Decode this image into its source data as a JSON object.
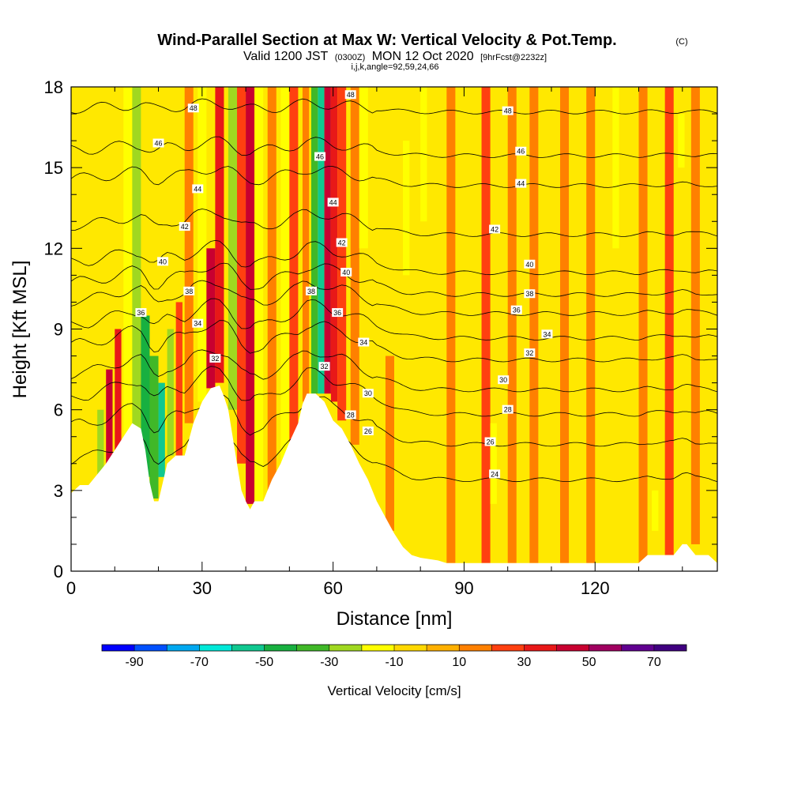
{
  "chart_data": {
    "type": "heatmap",
    "title": "Wind-Parallel Section at Max W: Vertical Velocity & Pot.Temp.",
    "title_mark": "(C)",
    "subtitle_parts": [
      "Valid 1200 JST",
      "(0300Z)",
      "MON 12 Oct 2020",
      "[9hrFcst@2232z]"
    ],
    "subtitle2": "i,j,k,angle=92,59,24,66",
    "xlabel": "Distance [nm]",
    "ylabel": "Height [Kft MSL]",
    "xlim": [
      0,
      148
    ],
    "ylim": [
      0,
      18
    ],
    "x_ticks": [
      0,
      30,
      60,
      90,
      120
    ],
    "x_tick_labels": [
      "0",
      "30",
      "60",
      "90",
      "120"
    ],
    "y_ticks": [
      0,
      3,
      6,
      9,
      12,
      15,
      18
    ],
    "y_tick_labels": [
      "0",
      "3",
      "6",
      "9",
      "12",
      "15",
      "18"
    ],
    "colorbar": {
      "title": "Vertical Velocity [cm/s]",
      "bounds": [
        -100,
        80
      ],
      "step": 10,
      "tick_values": [
        -90,
        -70,
        -50,
        -30,
        -10,
        10,
        30,
        50,
        70
      ],
      "tick_labels": [
        "-90",
        "-70",
        "-50",
        "-30",
        "-10",
        "10",
        "30",
        "50",
        "70"
      ],
      "colors": [
        "#0000ff",
        "#0050ff",
        "#00a8f0",
        "#00e8d8",
        "#10c890",
        "#18b040",
        "#40b828",
        "#a0d820",
        "#ffff00",
        "#ffd800",
        "#ffb000",
        "#ff8000",
        "#ff4010",
        "#e81818",
        "#c80030",
        "#a00060",
        "#600090",
        "#400080"
      ]
    },
    "grid": false,
    "terrain_height": [
      [
        0,
        2.9
      ],
      [
        2,
        3.2
      ],
      [
        4,
        3.2
      ],
      [
        6,
        3.6
      ],
      [
        8,
        4.0
      ],
      [
        10,
        4.5
      ],
      [
        12,
        5.0
      ],
      [
        14,
        5.5
      ],
      [
        16,
        5.3
      ],
      [
        17,
        4.5
      ],
      [
        18,
        3.3
      ],
      [
        19,
        2.6
      ],
      [
        20,
        2.6
      ],
      [
        21,
        3.3
      ],
      [
        22,
        4.0
      ],
      [
        24,
        4.3
      ],
      [
        26,
        4.3
      ],
      [
        28,
        5.5
      ],
      [
        30,
        6.3
      ],
      [
        32,
        6.8
      ],
      [
        34,
        6.9
      ],
      [
        35,
        6.5
      ],
      [
        36,
        6.0
      ],
      [
        37,
        5.0
      ],
      [
        38,
        4.0
      ],
      [
        39,
        3.0
      ],
      [
        40,
        2.6
      ],
      [
        41,
        2.3
      ],
      [
        42,
        2.6
      ],
      [
        44,
        2.6
      ],
      [
        45,
        3.0
      ],
      [
        46,
        3.4
      ],
      [
        48,
        4.0
      ],
      [
        50,
        4.8
      ],
      [
        52,
        5.5
      ],
      [
        53,
        6.2
      ],
      [
        54,
        6.6
      ],
      [
        56,
        6.6
      ],
      [
        58,
        6.3
      ],
      [
        60,
        5.6
      ],
      [
        62,
        5.3
      ],
      [
        64,
        4.7
      ],
      [
        66,
        4.0
      ],
      [
        68,
        3.4
      ],
      [
        70,
        2.6
      ],
      [
        72,
        2.0
      ],
      [
        74,
        1.4
      ],
      [
        76,
        0.9
      ],
      [
        78,
        0.6
      ],
      [
        80,
        0.5
      ],
      [
        84,
        0.4
      ],
      [
        86,
        0.3
      ],
      [
        90,
        0.3
      ],
      [
        100,
        0.3
      ],
      [
        110,
        0.3
      ],
      [
        120,
        0.3
      ],
      [
        130,
        0.3
      ],
      [
        132,
        0.6
      ],
      [
        133,
        0.6
      ],
      [
        136,
        0.6
      ],
      [
        138,
        0.6
      ],
      [
        140,
        1.0
      ],
      [
        141,
        1.0
      ],
      [
        143,
        0.6
      ],
      [
        146,
        0.6
      ],
      [
        148,
        0.3
      ]
    ],
    "w_cells": [
      {
        "x": 6,
        "w": 1.5,
        "y0": 3.5,
        "y1": 6.0,
        "v": -25
      },
      {
        "x": 8,
        "w": 1.5,
        "y0": 4.0,
        "y1": 7.5,
        "v": 45
      },
      {
        "x": 10,
        "w": 1.5,
        "y0": 4.5,
        "y1": 9.0,
        "v": 35
      },
      {
        "x": 12,
        "w": 2.0,
        "y0": 5.0,
        "y1": 18.0,
        "v": -15
      },
      {
        "x": 14,
        "w": 2.0,
        "y0": 5.0,
        "y1": 18.0,
        "v": -25
      },
      {
        "x": 16,
        "w": 2.0,
        "y0": 3.5,
        "y1": 9.5,
        "v": -45
      },
      {
        "x": 18,
        "w": 2.0,
        "y0": 2.7,
        "y1": 8.0,
        "v": -35
      },
      {
        "x": 20,
        "w": 1.5,
        "y0": 3.5,
        "y1": 7.0,
        "v": -55
      },
      {
        "x": 22,
        "w": 1.5,
        "y0": 4.3,
        "y1": 9.0,
        "v": -30
      },
      {
        "x": 24,
        "w": 1.5,
        "y0": 4.3,
        "y1": 10.0,
        "v": 25
      },
      {
        "x": 26,
        "w": 2.0,
        "y0": 5.5,
        "y1": 18.0,
        "v": 15
      },
      {
        "x": 29,
        "w": 2.0,
        "y0": 6.3,
        "y1": 18.0,
        "v": -15
      },
      {
        "x": 31,
        "w": 2.0,
        "y0": 6.8,
        "y1": 12.0,
        "v": 45
      },
      {
        "x": 33,
        "w": 2.0,
        "y0": 7.0,
        "y1": 18.0,
        "v": 35
      },
      {
        "x": 36,
        "w": 2.0,
        "y0": 6.0,
        "y1": 18.0,
        "v": -25
      },
      {
        "x": 38,
        "w": 2.0,
        "y0": 4.0,
        "y1": 18.0,
        "v": 25
      },
      {
        "x": 40,
        "w": 2.0,
        "y0": 2.5,
        "y1": 18.0,
        "v": 45
      },
      {
        "x": 42,
        "w": 2.0,
        "y0": 2.6,
        "y1": 18.0,
        "v": -15
      },
      {
        "x": 45,
        "w": 2.0,
        "y0": 3.0,
        "y1": 18.0,
        "v": 15
      },
      {
        "x": 48,
        "w": 2.0,
        "y0": 4.0,
        "y1": 18.0,
        "v": -15
      },
      {
        "x": 50,
        "w": 2.0,
        "y0": 4.8,
        "y1": 18.0,
        "v": 25
      },
      {
        "x": 53,
        "w": 1.5,
        "y0": 6.3,
        "y1": 18.0,
        "v": 15
      },
      {
        "x": 55,
        "w": 1.5,
        "y0": 6.6,
        "y1": 18.0,
        "v": -35
      },
      {
        "x": 56.5,
        "w": 1.5,
        "y0": 6.6,
        "y1": 18.0,
        "v": -55
      },
      {
        "x": 58,
        "w": 1.5,
        "y0": 6.6,
        "y1": 18.0,
        "v": 45
      },
      {
        "x": 59.5,
        "w": 1.5,
        "y0": 6.3,
        "y1": 18.0,
        "v": 35
      },
      {
        "x": 61,
        "w": 2.0,
        "y0": 5.6,
        "y1": 18.0,
        "v": 25
      },
      {
        "x": 64,
        "w": 2.0,
        "y0": 4.7,
        "y1": 18.0,
        "v": 15
      },
      {
        "x": 66,
        "w": 2.0,
        "y0": 12.0,
        "y1": 18.0,
        "v": -15
      },
      {
        "x": 72,
        "w": 2.0,
        "y0": 1.5,
        "y1": 8.0,
        "v": 15
      },
      {
        "x": 76,
        "w": 1.5,
        "y0": 11.0,
        "y1": 16.0,
        "v": -15
      },
      {
        "x": 80,
        "w": 1.5,
        "y0": 13.0,
        "y1": 18.0,
        "v": -15
      },
      {
        "x": 86,
        "w": 2.0,
        "y0": 0.3,
        "y1": 18.0,
        "v": 15
      },
      {
        "x": 94,
        "w": 2.0,
        "y0": 0.3,
        "y1": 18.0,
        "v": 25
      },
      {
        "x": 96,
        "w": 1.5,
        "y0": 2.5,
        "y1": 5.5,
        "v": -15
      },
      {
        "x": 100,
        "w": 2.0,
        "y0": 0.3,
        "y1": 18.0,
        "v": 15
      },
      {
        "x": 105,
        "w": 2.0,
        "y0": 0.3,
        "y1": 18.0,
        "v": 15
      },
      {
        "x": 112,
        "w": 2.0,
        "y0": 0.3,
        "y1": 18.0,
        "v": 15
      },
      {
        "x": 118,
        "w": 2.0,
        "y0": 0.3,
        "y1": 18.0,
        "v": 15
      },
      {
        "x": 124,
        "w": 1.5,
        "y0": 12.0,
        "y1": 18.0,
        "v": -15
      },
      {
        "x": 130,
        "w": 2.0,
        "y0": 0.3,
        "y1": 18.0,
        "v": 15
      },
      {
        "x": 133,
        "w": 1.5,
        "y0": 1.5,
        "y1": 3.0,
        "v": -15
      },
      {
        "x": 136,
        "w": 2.0,
        "y0": 0.6,
        "y1": 18.0,
        "v": 25
      },
      {
        "x": 139,
        "w": 1.5,
        "y0": 15.0,
        "y1": 17.0,
        "v": -15
      },
      {
        "x": 142,
        "w": 2.0,
        "y0": 1.0,
        "y1": 18.0,
        "v": 15
      }
    ],
    "isentropes": [
      {
        "theta": 24,
        "y_base": 3.6,
        "label_x": 97
      },
      {
        "theta": 26,
        "y_base": 4.9,
        "label_x": 96
      },
      {
        "theta": 28,
        "y_base": 6.0,
        "label_x": 100
      },
      {
        "theta": 30,
        "y_base": 6.9,
        "label_x": 99
      },
      {
        "theta": 32,
        "y_base": 8.0,
        "label_x": 105
      },
      {
        "theta": 34,
        "y_base": 8.8,
        "label_x": 109
      },
      {
        "theta": 36,
        "y_base": 9.7,
        "label_x": 102
      },
      {
        "theta": 38,
        "y_base": 10.4,
        "label_x": 105
      },
      {
        "theta": 40,
        "y_base": 11.2,
        "label_x": 105
      },
      {
        "theta": 42,
        "y_base": 12.6,
        "label_x": 97
      },
      {
        "theta": 44,
        "y_base": 14.4,
        "label_x": 103
      },
      {
        "theta": 46,
        "y_base": 15.5,
        "label_x": 103
      },
      {
        "theta": 48,
        "y_base": 17.1,
        "label_x": 100
      }
    ],
    "contour_labels": [
      {
        "text": "48",
        "x": 28,
        "y": 17.2
      },
      {
        "text": "48",
        "x": 64,
        "y": 17.7
      },
      {
        "text": "48",
        "x": 100,
        "y": 17.1
      },
      {
        "text": "46",
        "x": 20,
        "y": 15.9
      },
      {
        "text": "46",
        "x": 57,
        "y": 15.4
      },
      {
        "text": "46",
        "x": 103,
        "y": 15.6
      },
      {
        "text": "44",
        "x": 29,
        "y": 14.2
      },
      {
        "text": "44",
        "x": 60,
        "y": 13.7
      },
      {
        "text": "44",
        "x": 103,
        "y": 14.4
      },
      {
        "text": "42",
        "x": 26,
        "y": 12.8
      },
      {
        "text": "42",
        "x": 62,
        "y": 12.2
      },
      {
        "text": "42",
        "x": 97,
        "y": 12.7
      },
      {
        "text": "40",
        "x": 21,
        "y": 11.5
      },
      {
        "text": "40",
        "x": 63,
        "y": 11.1
      },
      {
        "text": "40",
        "x": 105,
        "y": 11.4
      },
      {
        "text": "38",
        "x": 27,
        "y": 10.4
      },
      {
        "text": "38",
        "x": 55,
        "y": 10.4
      },
      {
        "text": "38",
        "x": 105,
        "y": 10.3
      },
      {
        "text": "36",
        "x": 16,
        "y": 9.6
      },
      {
        "text": "36",
        "x": 61,
        "y": 9.6
      },
      {
        "text": "36",
        "x": 102,
        "y": 9.7
      },
      {
        "text": "34",
        "x": 29,
        "y": 9.2
      },
      {
        "text": "34",
        "x": 67,
        "y": 8.5
      },
      {
        "text": "34",
        "x": 109,
        "y": 8.8
      },
      {
        "text": "32",
        "x": 33,
        "y": 7.9
      },
      {
        "text": "32",
        "x": 58,
        "y": 7.6
      },
      {
        "text": "32",
        "x": 105,
        "y": 8.1
      },
      {
        "text": "30",
        "x": 68,
        "y": 6.6
      },
      {
        "text": "30",
        "x": 99,
        "y": 7.1
      },
      {
        "text": "28",
        "x": 64,
        "y": 5.8
      },
      {
        "text": "28",
        "x": 100,
        "y": 6.0
      },
      {
        "text": "26",
        "x": 68,
        "y": 5.2
      },
      {
        "text": "26",
        "x": 96,
        "y": 4.8
      },
      {
        "text": "24",
        "x": 97,
        "y": 3.6
      }
    ]
  }
}
